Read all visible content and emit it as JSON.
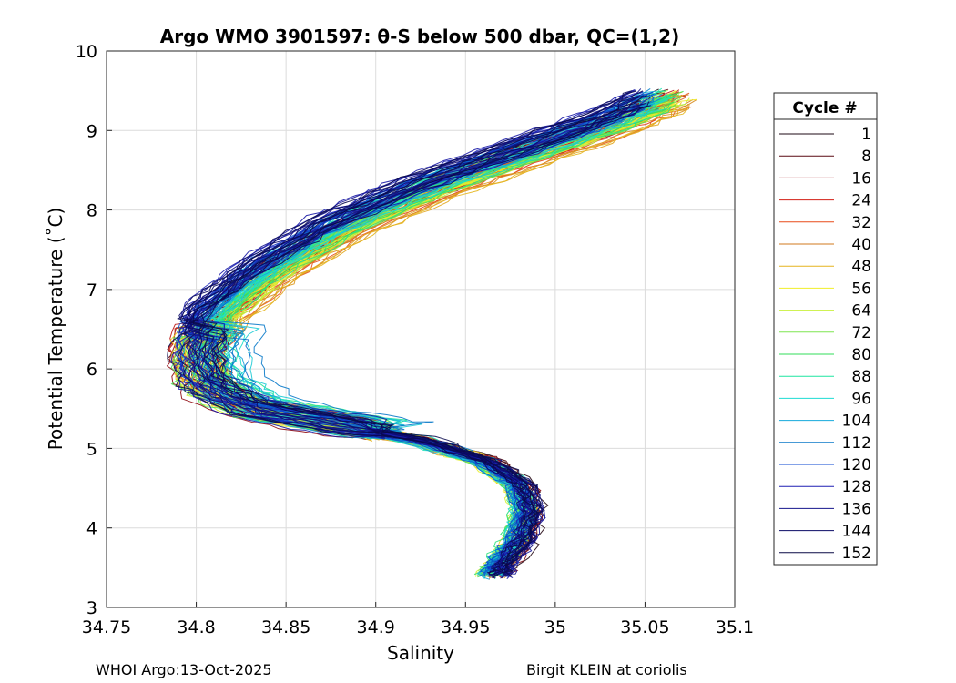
{
  "chart_data": {
    "type": "line",
    "title": "Argo WMO 3901597: θ-S below 500 dbar,  QC=(1,2)",
    "xlabel": "Salinity",
    "ylabel": "Potential Temperature (˚C)",
    "xlim": [
      34.75,
      35.1
    ],
    "ylim": [
      3,
      10
    ],
    "xticks": [
      "34.75",
      "34.8",
      "34.85",
      "34.9",
      "34.95",
      "35",
      "35.05",
      "35.1"
    ],
    "yticks": [
      "3",
      "4",
      "5",
      "6",
      "7",
      "8",
      "9",
      "10"
    ],
    "grid": true,
    "legend": {
      "title": "Cycle #",
      "placement": "outside-right",
      "entries": [
        {
          "label": "1",
          "color": "#1e0a14"
        },
        {
          "label": "8",
          "color": "#5a0a14"
        },
        {
          "label": "16",
          "color": "#a00a10"
        },
        {
          "label": "24",
          "color": "#d21e14"
        },
        {
          "label": "32",
          "color": "#e84a18"
        },
        {
          "label": "40",
          "color": "#d2781e"
        },
        {
          "label": "48",
          "color": "#e6b41e"
        },
        {
          "label": "56",
          "color": "#f0ee28"
        },
        {
          "label": "64",
          "color": "#c8f03c"
        },
        {
          "label": "72",
          "color": "#7ee650"
        },
        {
          "label": "80",
          "color": "#32dc5a"
        },
        {
          "label": "88",
          "color": "#1ee6a0"
        },
        {
          "label": "96",
          "color": "#1edcd2"
        },
        {
          "label": "104",
          "color": "#14aadc"
        },
        {
          "label": "112",
          "color": "#0a78c8"
        },
        {
          "label": "120",
          "color": "#0a46d2"
        },
        {
          "label": "128",
          "color": "#1e1eb4"
        },
        {
          "label": "136",
          "color": "#14148c"
        },
        {
          "label": "144",
          "color": "#0a0a64"
        },
        {
          "label": "152",
          "color": "#0a0a46"
        }
      ]
    },
    "series_template": {
      "salinity": [
        35.06,
        35.03,
        34.98,
        34.93,
        34.88,
        34.84,
        34.81,
        34.8,
        34.805,
        34.83,
        34.88,
        34.93,
        34.965,
        34.985,
        34.99,
        34.985,
        34.975,
        34.97
      ],
      "theta": [
        9.4,
        9.1,
        8.7,
        8.3,
        7.8,
        7.25,
        6.7,
        6.2,
        5.8,
        5.5,
        5.3,
        5.1,
        4.85,
        4.55,
        4.2,
        3.85,
        3.55,
        3.38
      ]
    },
    "profiles": 152
  },
  "footer": {
    "left": "WHOI Argo:13-Oct-2025",
    "right": "Birgit KLEIN at coriolis"
  }
}
